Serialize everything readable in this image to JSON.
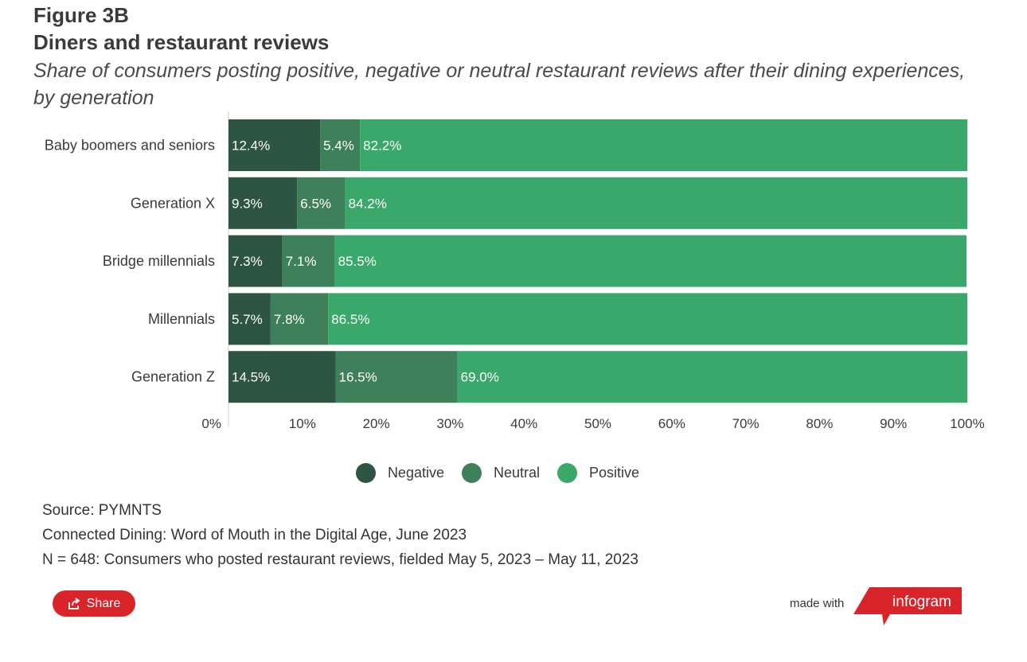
{
  "header": {
    "figure_label": "Figure 3B",
    "title": "Diners and restaurant reviews",
    "subtitle": "Share of consumers posting positive, negative or neutral restaurant reviews after their dining experiences, by generation"
  },
  "chart_data": {
    "type": "bar",
    "orientation": "horizontal",
    "stacked": true,
    "categories": [
      "Baby boomers and seniors",
      "Generation X",
      "Bridge millennials",
      "Millennials",
      "Generation Z"
    ],
    "series": [
      {
        "name": "Negative",
        "color": "#2e5543",
        "values": [
          12.4,
          9.3,
          7.3,
          5.7,
          14.5
        ],
        "labels": [
          "12.4%",
          "9.3%",
          "7.3%",
          "5.7%",
          "14.5%"
        ]
      },
      {
        "name": "Neutral",
        "color": "#3e805a",
        "values": [
          5.4,
          6.5,
          7.1,
          7.8,
          16.5
        ],
        "labels": [
          "5.4%",
          "6.5%",
          "7.1%",
          "7.8%",
          "16.5%"
        ]
      },
      {
        "name": "Positive",
        "color": "#3aa86a",
        "values": [
          82.2,
          84.2,
          85.5,
          86.5,
          69.0
        ],
        "labels": [
          "82.2%",
          "84.2%",
          "85.5%",
          "86.5%",
          "69.0%"
        ]
      }
    ],
    "xlim": [
      0,
      100
    ],
    "x_ticks": [
      0,
      10,
      20,
      30,
      40,
      50,
      60,
      70,
      80,
      90,
      100
    ],
    "x_tick_labels": [
      "0%",
      "10%",
      "20%",
      "30%",
      "40%",
      "50%",
      "60%",
      "70%",
      "80%",
      "90%",
      "100%"
    ],
    "legend_position": "bottom",
    "grid": false
  },
  "source": {
    "line1": "Source: PYMNTS",
    "line2": "Connected Dining: Word of Mouth in the Digital Age, June 2023",
    "line3": "N = 648: Consumers who posted restaurant reviews, fielded May 5, 2023 – May 11, 2023"
  },
  "footer": {
    "share_label": "Share",
    "made_with": "made with",
    "brand": "infogram",
    "brand_color": "#d9252a"
  }
}
